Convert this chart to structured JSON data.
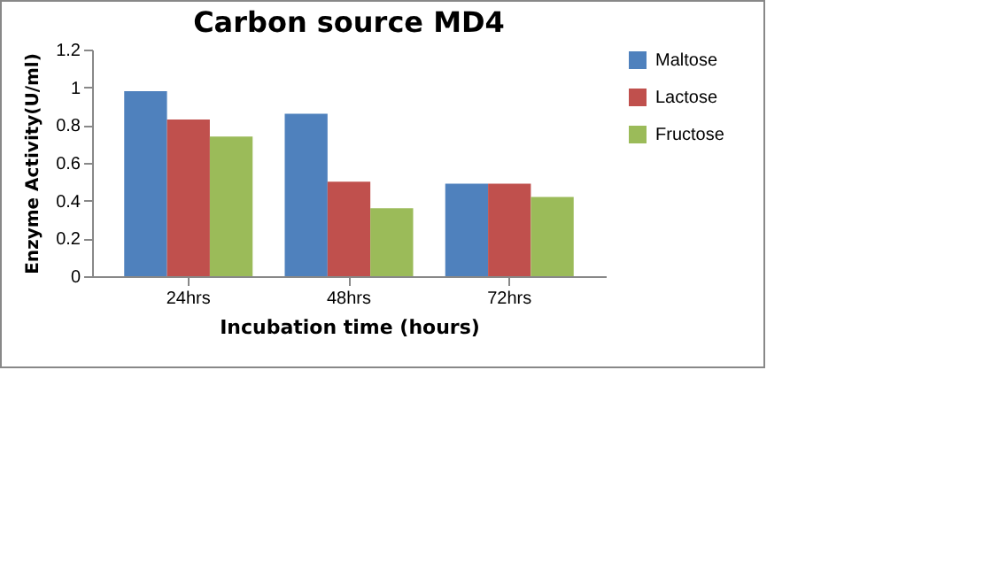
{
  "chart_data": {
    "type": "bar",
    "title": "Carbon source MD4",
    "xlabel": "Incubation time (hours)",
    "ylabel": "Enzyme Activity(U/ml)",
    "categories": [
      "24hrs",
      "48hrs",
      "72hrs"
    ],
    "series": [
      {
        "name": "Maltose",
        "color": "#4f81bd",
        "values": [
          0.98,
          0.86,
          0.49
        ]
      },
      {
        "name": "Lactose",
        "color": "#c0504d",
        "values": [
          0.83,
          0.5,
          0.49
        ]
      },
      {
        "name": "Fructose",
        "color": "#9bbb59",
        "values": [
          0.74,
          0.36,
          0.42
        ]
      }
    ],
    "ylim": [
      0,
      1.2
    ],
    "yticks": [
      0,
      0.2,
      0.4,
      0.6,
      0.8,
      1,
      1.2
    ],
    "grid": false,
    "legend": "right"
  }
}
